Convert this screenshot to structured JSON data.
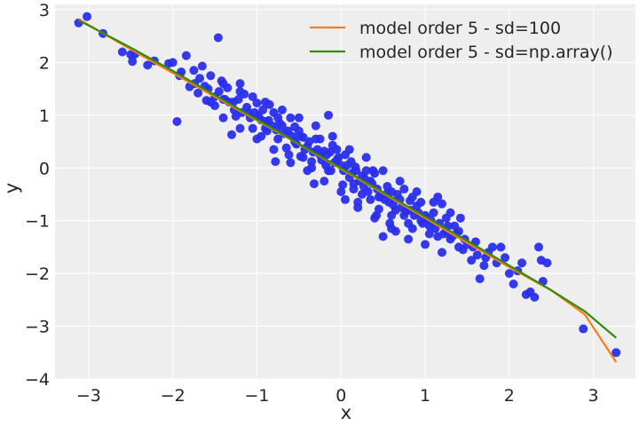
{
  "chart_data": {
    "type": "scatter",
    "title": "",
    "xlabel": "x",
    "ylabel": "y",
    "xlim": [
      -3.4,
      3.5
    ],
    "ylim": [
      -4,
      3.1
    ],
    "xticks": [
      -3,
      -2,
      -1,
      0,
      1,
      2,
      3
    ],
    "yticks": [
      -4,
      -3,
      -2,
      -1,
      0,
      1,
      2,
      3
    ],
    "xtick_labels": [
      "−3",
      "−2",
      "−1",
      "0",
      "1",
      "2",
      "3"
    ],
    "ytick_labels": [
      "−4",
      "−3",
      "−2",
      "−1",
      "0",
      "1",
      "2",
      "3"
    ],
    "grid": true,
    "legend_position": "top-right",
    "colors": {
      "background": "#eeeeee",
      "grid": "#ffffff",
      "points": "#2a2eec",
      "line1": "#fa7c17",
      "line2": "#328c06"
    },
    "scatter_series": {
      "points": [
        [
          -3.12,
          2.75
        ],
        [
          -3.02,
          2.87
        ],
        [
          -2.83,
          2.55
        ],
        [
          -2.6,
          2.2
        ],
        [
          -2.48,
          2.02
        ],
        [
          -2.45,
          2.16
        ],
        [
          -2.22,
          2.03
        ],
        [
          -2.05,
          1.98
        ],
        [
          -2.0,
          2.0
        ],
        [
          -1.95,
          0.88
        ],
        [
          -1.92,
          1.75
        ],
        [
          -1.84,
          2.13
        ],
        [
          -1.8,
          1.54
        ],
        [
          -1.74,
          1.6
        ],
        [
          -1.7,
          1.42
        ],
        [
          -1.65,
          1.93
        ],
        [
          -1.6,
          1.28
        ],
        [
          -1.55,
          1.25
        ],
        [
          -1.5,
          1.18
        ],
        [
          -1.46,
          2.47
        ],
        [
          -1.42,
          1.65
        ],
        [
          -1.4,
          1.3
        ],
        [
          -1.35,
          1.52
        ],
        [
          -1.3,
          0.63
        ],
        [
          -1.28,
          1.25
        ],
        [
          -1.25,
          0.98
        ],
        [
          -1.2,
          1.6
        ],
        [
          -1.15,
          1.4
        ],
        [
          -1.1,
          1.05
        ],
        [
          -1.05,
          0.75
        ],
        [
          -1.0,
          1.23
        ],
        [
          -0.95,
          0.91
        ],
        [
          -0.9,
          0.88
        ],
        [
          -0.88,
          0.7
        ],
        [
          -0.85,
          1.2
        ],
        [
          -0.8,
          1.05
        ],
        [
          -0.78,
          0.12
        ],
        [
          -0.75,
          0.55
        ],
        [
          -0.7,
          0.8
        ],
        [
          -0.65,
          0.38
        ],
        [
          -0.6,
          0.95
        ],
        [
          -0.55,
          0.5
        ],
        [
          -0.5,
          0.7
        ],
        [
          -0.48,
          0.22
        ],
        [
          -0.45,
          0.58
        ],
        [
          -0.4,
          0.41
        ],
        [
          -0.35,
          0.12
        ],
        [
          -0.32,
          -0.3
        ],
        [
          -0.3,
          0.55
        ],
        [
          -0.25,
          0.25
        ],
        [
          -0.2,
          0.32
        ],
        [
          -0.18,
          0.05
        ],
        [
          -0.15,
          1.0
        ],
        [
          -0.12,
          -0.05
        ],
        [
          -0.1,
          0.43
        ],
        [
          -0.05,
          0.15
        ],
        [
          0.0,
          0.05
        ],
        [
          0.02,
          -0.32
        ],
        [
          0.05,
          0.25
        ],
        [
          0.1,
          -0.18
        ],
        [
          0.12,
          0.12
        ],
        [
          0.15,
          -0.4
        ],
        [
          0.18,
          -0.05
        ],
        [
          0.2,
          -0.65
        ],
        [
          0.25,
          -0.5
        ],
        [
          0.28,
          -0.2
        ],
        [
          0.3,
          -0.05
        ],
        [
          0.35,
          -0.25
        ],
        [
          0.4,
          -0.1
        ],
        [
          0.42,
          -0.9
        ],
        [
          0.45,
          -0.55
        ],
        [
          0.5,
          -1.3
        ],
        [
          0.55,
          -0.48
        ],
        [
          0.58,
          -1.05
        ],
        [
          0.6,
          -0.45
        ],
        [
          0.65,
          -0.8
        ],
        [
          0.7,
          -0.6
        ],
        [
          0.75,
          -0.9
        ],
        [
          0.8,
          -1.05
        ],
        [
          0.85,
          -0.55
        ],
        [
          0.9,
          -0.72
        ],
        [
          0.95,
          -1.0
        ],
        [
          1.0,
          -0.9
        ],
        [
          1.05,
          -1.1
        ],
        [
          1.1,
          -0.85
        ],
        [
          1.15,
          -1.3
        ],
        [
          1.2,
          -0.68
        ],
        [
          1.25,
          -1.2
        ],
        [
          1.3,
          -1.35
        ],
        [
          1.35,
          -1.1
        ],
        [
          1.4,
          -1.5
        ],
        [
          1.42,
          -0.95
        ],
        [
          1.45,
          -1.55
        ],
        [
          1.5,
          -1.45
        ],
        [
          1.55,
          -1.75
        ],
        [
          1.6,
          -1.4
        ],
        [
          1.65,
          -2.1
        ],
        [
          1.7,
          -1.85
        ],
        [
          1.75,
          -1.6
        ],
        [
          1.8,
          -1.5
        ],
        [
          1.85,
          -1.8
        ],
        [
          1.9,
          -1.5
        ],
        [
          1.95,
          -1.7
        ],
        [
          2.0,
          -2.0
        ],
        [
          2.05,
          -2.2
        ],
        [
          2.1,
          -1.95
        ],
        [
          2.15,
          -1.8
        ],
        [
          2.2,
          -2.4
        ],
        [
          2.25,
          -2.35
        ],
        [
          2.3,
          -2.45
        ],
        [
          2.35,
          -1.5
        ],
        [
          2.38,
          -1.75
        ],
        [
          2.4,
          -2.15
        ],
        [
          2.45,
          -1.8
        ],
        [
          2.88,
          -3.05
        ],
        [
          3.27,
          -3.5
        ],
        [
          -2.5,
          2.15
        ],
        [
          -2.3,
          1.95
        ],
        [
          -1.9,
          1.82
        ],
        [
          -1.75,
          1.85
        ],
        [
          -1.68,
          1.7
        ],
        [
          -1.62,
          1.55
        ],
        [
          -1.58,
          1.5
        ],
        [
          -1.5,
          1.35
        ],
        [
          -1.45,
          1.45
        ],
        [
          -1.38,
          1.3
        ],
        [
          -1.33,
          1.25
        ],
        [
          -1.27,
          1.1
        ],
        [
          -1.22,
          1.3
        ],
        [
          -1.18,
          1.05
        ],
        [
          -1.12,
          1.15
        ],
        [
          -1.08,
          0.95
        ],
        [
          -1.03,
          1.05
        ],
        [
          -0.98,
          0.98
        ],
        [
          -0.93,
          1.1
        ],
        [
          -0.9,
          0.75
        ],
        [
          -0.86,
          0.9
        ],
        [
          -0.82,
          0.8
        ],
        [
          -0.77,
          0.72
        ],
        [
          -0.73,
          0.85
        ],
        [
          -0.68,
          0.65
        ],
        [
          -0.63,
          0.7
        ],
        [
          -0.58,
          0.6
        ],
        [
          -0.53,
          0.45
        ],
        [
          -0.48,
          0.6
        ],
        [
          -0.43,
          0.35
        ],
        [
          -0.38,
          0.5
        ],
        [
          -0.33,
          0.3
        ],
        [
          -0.28,
          0.35
        ],
        [
          -0.23,
          0.15
        ],
        [
          -0.17,
          0.25
        ],
        [
          -0.13,
          0.3
        ],
        [
          -0.08,
          0.1
        ],
        [
          -0.03,
          0.2
        ],
        [
          0.03,
          -0.05
        ],
        [
          0.07,
          0.05
        ],
        [
          0.13,
          -0.1
        ],
        [
          0.17,
          0.02
        ],
        [
          0.22,
          -0.25
        ],
        [
          0.27,
          -0.35
        ],
        [
          0.32,
          -0.45
        ],
        [
          0.37,
          -0.3
        ],
        [
          0.43,
          -0.4
        ],
        [
          0.47,
          -0.55
        ],
        [
          0.52,
          -0.6
        ],
        [
          0.57,
          -0.65
        ],
        [
          0.62,
          -0.7
        ],
        [
          0.67,
          -0.5
        ],
        [
          0.72,
          -0.75
        ],
        [
          0.77,
          -0.82
        ],
        [
          0.82,
          -0.8
        ],
        [
          0.87,
          -0.9
        ],
        [
          0.92,
          -0.85
        ],
        [
          0.97,
          -1.05
        ],
        [
          1.02,
          -0.95
        ],
        [
          1.07,
          -1.0
        ],
        [
          1.12,
          -1.15
        ],
        [
          1.17,
          -1.05
        ],
        [
          1.22,
          -1.25
        ],
        [
          1.27,
          -1.1
        ],
        [
          1.32,
          -1.3
        ],
        [
          1.37,
          -1.25
        ],
        [
          1.47,
          -1.35
        ],
        [
          1.57,
          -1.5
        ],
        [
          1.62,
          -1.65
        ],
        [
          1.72,
          -1.7
        ],
        [
          -1.55,
          1.75
        ],
        [
          -1.4,
          1.6
        ],
        [
          -1.2,
          1.45
        ],
        [
          -1.05,
          1.35
        ],
        [
          -0.9,
          1.25
        ],
        [
          -0.7,
          1.1
        ],
        [
          -0.5,
          0.95
        ],
        [
          -0.3,
          0.8
        ],
        [
          -0.1,
          0.6
        ],
        [
          0.1,
          0.35
        ],
        [
          0.3,
          0.2
        ],
        [
          0.5,
          -0.05
        ],
        [
          0.7,
          -0.25
        ],
        [
          0.9,
          -0.45
        ],
        [
          1.1,
          -0.65
        ],
        [
          1.3,
          -0.85
        ],
        [
          -1.4,
          0.95
        ],
        [
          -1.2,
          0.75
        ],
        [
          -1.0,
          0.55
        ],
        [
          -0.8,
          0.35
        ],
        [
          -0.6,
          0.1
        ],
        [
          -0.4,
          -0.05
        ],
        [
          -0.2,
          -0.25
        ],
        [
          0.0,
          -0.45
        ],
        [
          0.2,
          -0.75
        ],
        [
          0.4,
          -0.95
        ],
        [
          0.6,
          -1.15
        ],
        [
          0.8,
          -1.35
        ],
        [
          1.0,
          -1.45
        ],
        [
          1.2,
          -1.6
        ],
        [
          -0.45,
          0.2
        ],
        [
          -0.15,
          -0.05
        ],
        [
          0.25,
          -0.15
        ],
        [
          0.55,
          -0.35
        ],
        [
          0.85,
          -1.15
        ],
        [
          1.15,
          -0.55
        ],
        [
          -0.62,
          0.25
        ],
        [
          -0.05,
          0.35
        ],
        [
          0.35,
          -0.6
        ],
        [
          0.65,
          -1.2
        ],
        [
          0.95,
          -0.65
        ],
        [
          -0.25,
          0.55
        ],
        [
          0.15,
          -0.3
        ],
        [
          0.45,
          -0.78
        ],
        [
          0.75,
          -0.4
        ],
        [
          1.25,
          -0.95
        ],
        [
          -0.95,
          0.6
        ],
        [
          -0.35,
          0.0
        ],
        [
          0.05,
          -0.6
        ],
        [
          0.6,
          -0.9
        ],
        [
          1.05,
          -1.25
        ],
        [
          -0.75,
          0.95
        ],
        [
          -0.55,
          0.78
        ],
        [
          0.38,
          -0.05
        ],
        [
          0.82,
          -0.62
        ],
        [
          1.4,
          -1.2
        ]
      ]
    },
    "series": [
      {
        "name": "model order 5 - sd=100",
        "x": [
          -3.12,
          -2.5,
          -2.0,
          -1.5,
          -1.0,
          -0.5,
          0.0,
          0.5,
          1.0,
          1.5,
          2.0,
          2.5,
          2.9,
          3.27
        ],
        "y": [
          2.82,
          2.25,
          1.8,
          1.35,
          0.9,
          0.45,
          -0.02,
          -0.48,
          -0.95,
          -1.42,
          -1.88,
          -2.32,
          -2.78,
          -3.68
        ]
      },
      {
        "name": "model order 5 - sd=np.array()",
        "x": [
          -3.12,
          -2.5,
          -2.0,
          -1.5,
          -1.0,
          -0.5,
          0.0,
          0.5,
          1.0,
          1.5,
          2.0,
          2.5,
          2.9,
          3.27
        ],
        "y": [
          2.8,
          2.28,
          1.84,
          1.38,
          0.92,
          0.46,
          0.0,
          -0.46,
          -0.92,
          -1.38,
          -1.85,
          -2.32,
          -2.72,
          -3.22
        ]
      }
    ]
  }
}
